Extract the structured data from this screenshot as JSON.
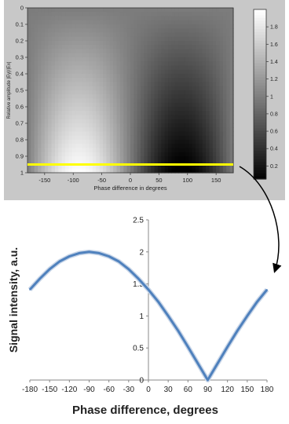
{
  "chart_data": [
    {
      "type": "heatmap",
      "xlabel": "Phase difference in degrees",
      "ylabel": "Relative amplitude |Ey|/|Ex|",
      "xlim": [
        -180,
        180
      ],
      "ylim": [
        0,
        1
      ],
      "x_ticks": [
        "-150",
        "-100",
        "-50",
        "0",
        "50",
        "100",
        "150"
      ],
      "x_tick_values": [
        -150,
        -100,
        -50,
        0,
        50,
        100,
        150
      ],
      "y_ticks": [
        "0",
        "0.1",
        "0.2",
        "0.3",
        "0.4",
        "0.5",
        "0.6",
        "0.7",
        "0.8",
        "0.9",
        "1"
      ],
      "y_tick_values": [
        0,
        0.1,
        0.2,
        0.3,
        0.4,
        0.5,
        0.6,
        0.7,
        0.8,
        0.9,
        1
      ],
      "colormap": "gray",
      "colorbar_ticks": [
        "1.8",
        "1.6",
        "1.4",
        "1.2",
        "1",
        "0.8",
        "0.6",
        "0.4",
        "0.2"
      ],
      "colorbar_tick_values": [
        1.8,
        1.6,
        1.4,
        1.2,
        1,
        0.8,
        0.6,
        0.4,
        0.2
      ],
      "colorbar_range": [
        0.05,
        2
      ],
      "highlight_line": {
        "y": 0.95,
        "color": "#ffff00"
      }
    },
    {
      "type": "line",
      "xlabel": "Phase difference, degrees",
      "ylabel": "Signal intensity, a.u.",
      "xlim": [
        -180,
        180
      ],
      "ylim": [
        0,
        2.5
      ],
      "x_ticks": [
        "-180",
        "-150",
        "-120",
        "-90",
        "-60",
        "-30",
        "0",
        "30",
        "60",
        "90",
        "120",
        "150",
        "180"
      ],
      "x_tick_values": [
        -180,
        -150,
        -120,
        -90,
        -60,
        -30,
        0,
        30,
        60,
        90,
        120,
        150,
        180
      ],
      "y_ticks": [
        "0",
        "0.5",
        "1",
        "1.5",
        "2",
        "2.5"
      ],
      "y_tick_values": [
        0,
        0.5,
        1,
        1.5,
        2,
        2.5
      ],
      "grid": false,
      "series": [
        {
          "color": "#4f81bd",
          "x": [
            -180,
            -165,
            -150,
            -135,
            -120,
            -105,
            -90,
            -75,
            -60,
            -45,
            -30,
            -15,
            0,
            15,
            30,
            45,
            60,
            75,
            90,
            105,
            120,
            135,
            150,
            165,
            180
          ],
          "values": [
            1.41,
            1.58,
            1.73,
            1.85,
            1.93,
            1.98,
            2.0,
            1.98,
            1.93,
            1.85,
            1.73,
            1.58,
            1.41,
            1.22,
            1.0,
            0.77,
            0.52,
            0.26,
            0.0,
            0.26,
            0.52,
            0.77,
            1.0,
            1.22,
            1.41
          ]
        }
      ]
    }
  ],
  "colors": {
    "highlight": "#ffff00",
    "panel": "#c8c8c8",
    "arrow": "#000000"
  }
}
